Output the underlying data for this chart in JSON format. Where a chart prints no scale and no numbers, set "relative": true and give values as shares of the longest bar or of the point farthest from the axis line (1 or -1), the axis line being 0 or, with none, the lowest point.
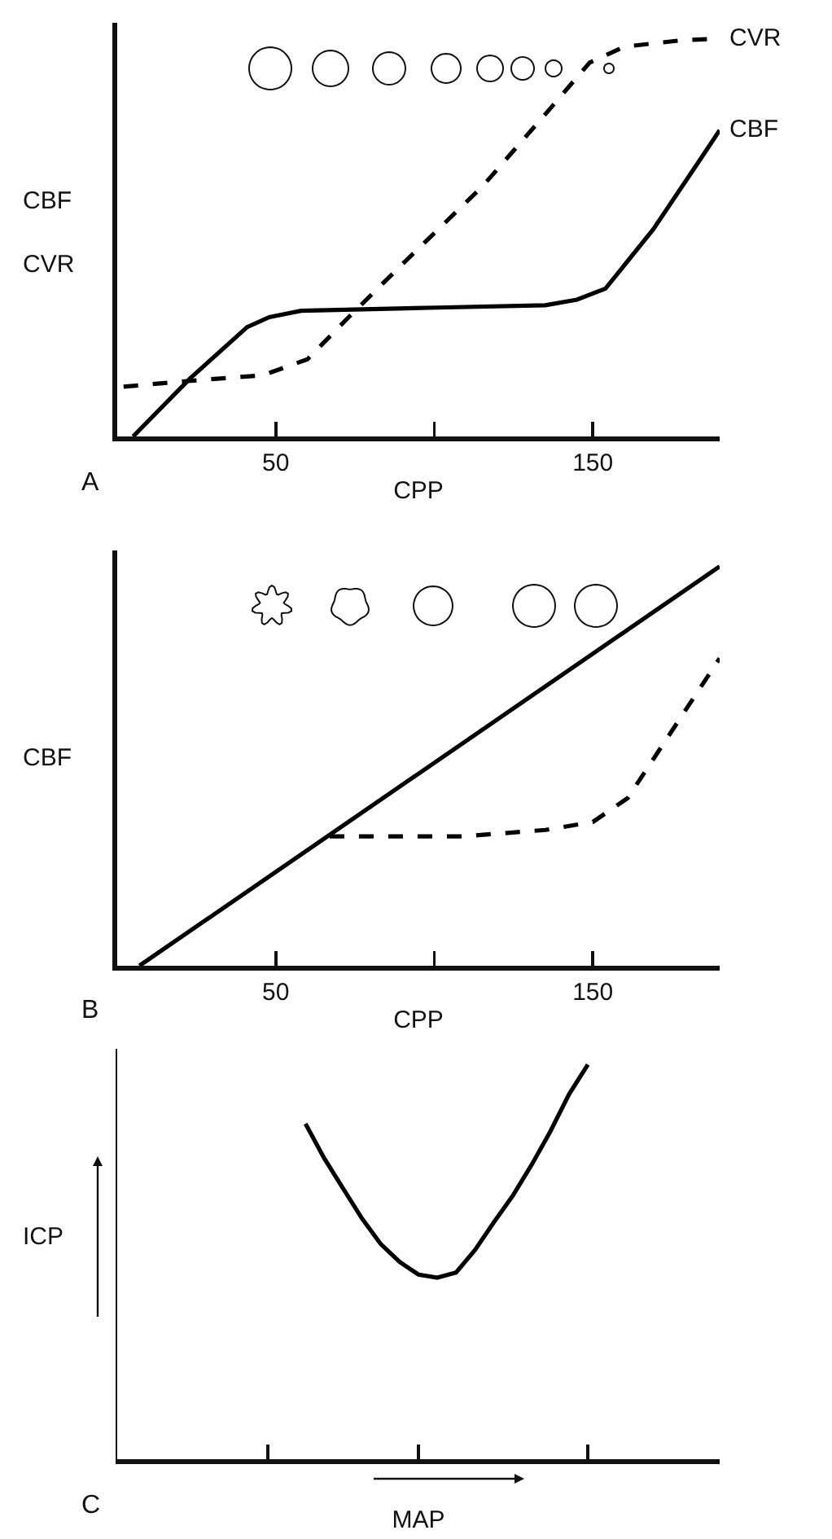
{
  "chart_data": [
    {
      "type": "line",
      "xlabel": "CPP",
      "ylabel": "CBF\nCVR",
      "xlim": [
        0,
        190
      ],
      "xticks": [
        50,
        {
          "value": 100,
          "label": null
        },
        150
      ],
      "relative": true,
      "marker": "none",
      "tick_labels": "x",
      "annotations": [
        "A"
      ],
      "series": [
        {
          "name": "CVR",
          "color": "#000000",
          "line_style": "dashed",
          "x": [
            2,
            20,
            46,
            60,
            73,
            94,
            115,
            135,
            149,
            160,
            178,
            190
          ],
          "values": [
            0.125,
            0.138,
            0.154,
            0.194,
            0.3,
            0.465,
            0.627,
            0.81,
            0.94,
            0.98,
            0.996,
            1
          ]
        },
        {
          "name": "CBF",
          "color": "#000000",
          "line_style": "solid",
          "x": [
            5,
            23,
            41,
            48,
            58,
            101,
            135,
            145,
            154,
            169,
            185,
            190
          ],
          "values": [
            0,
            0.146,
            0.275,
            0.3,
            0.316,
            0.324,
            0.33,
            0.344,
            0.372,
            0.52,
            0.71,
            0.77
          ]
        }
      ]
    },
    {
      "type": "line",
      "xlabel": "CPP",
      "ylabel": "CBF",
      "xlim": [
        0,
        190
      ],
      "xticks": [
        50,
        {
          "value": 100,
          "label": null
        },
        150
      ],
      "relative": true,
      "marker": "none",
      "tick_labels": "x",
      "annotations": [
        "B"
      ],
      "series": [
        {
          "color": "#000000",
          "line_style": "solid",
          "x": [
            7,
            190
          ],
          "values": [
            0,
            1
          ]
        },
        {
          "color": "#000000",
          "line_style": "dashed",
          "x": [
            67,
            109,
            135,
            150,
            161,
            190
          ],
          "values": [
            0.324,
            0.324,
            0.34,
            0.36,
            0.42,
            0.77
          ]
        }
      ]
    },
    {
      "type": "line",
      "xlabel": "MAP",
      "ylabel": "ICP",
      "relative": true,
      "marker": "none",
      "tick_labels": false,
      "annotations": [
        "C"
      ],
      "categories": [
        null,
        null,
        null,
        null,
        null,
        null,
        null,
        null,
        null,
        null,
        null,
        null,
        null,
        null,
        null,
        null,
        null,
        null,
        null,
        null,
        null,
        null,
        null,
        null,
        null,
        null,
        null,
        null,
        null,
        null,
        null,
        null,
        null
      ],
      "series": [
        {
          "color": "#000000",
          "line_style": "solid",
          "values": [
            null,
            null,
            null,
            null,
            null,
            null,
            null,
            null,
            null,
            null,
            0.85,
            0.762,
            0.686,
            0.61,
            0.545,
            0.5,
            0.468,
            0.46,
            0.473,
            0.53,
            0.6,
            0.667,
            0.745,
            0.83,
            0.925,
            1.0,
            null,
            null,
            null,
            null,
            null,
            null,
            null
          ]
        }
      ]
    }
  ]
}
